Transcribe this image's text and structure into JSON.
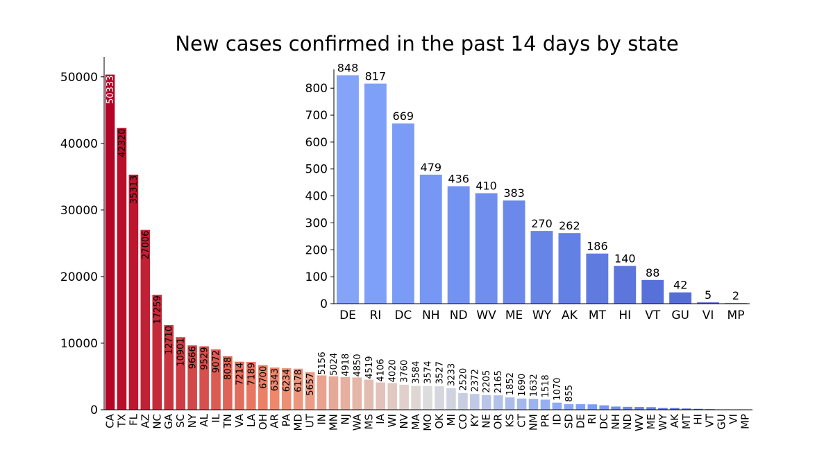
{
  "chart_data": [
    {
      "type": "bar",
      "title": "New cases confirmed in the past 14 days by state",
      "xlabel": "",
      "ylabel": "",
      "ylim": [
        0,
        53000
      ],
      "yticks": [
        0,
        10000,
        20000,
        30000,
        40000,
        50000
      ],
      "legend": "none",
      "categories": [
        "CA",
        "TX",
        "FL",
        "AZ",
        "NC",
        "GA",
        "SC",
        "NY",
        "AL",
        "IL",
        "TN",
        "VA",
        "LA",
        "OH",
        "AR",
        "PA",
        "MD",
        "UT",
        "IN",
        "MN",
        "NJ",
        "WA",
        "MS",
        "IA",
        "WI",
        "NV",
        "MA",
        "MO",
        "OK",
        "MI",
        "CO",
        "KY",
        "NE",
        "OR",
        "KS",
        "CT",
        "NM",
        "PR",
        "ID",
        "SD",
        "DE",
        "RI",
        "DC",
        "NH",
        "ND",
        "WV",
        "ME",
        "WY",
        "AK",
        "MT",
        "HI",
        "VT",
        "GU",
        "VI",
        "MP"
      ],
      "values": [
        50333,
        42320,
        35313,
        27006,
        17259,
        12710,
        10901,
        9666,
        9529,
        9072,
        8038,
        7214,
        7189,
        6700,
        6343,
        6234,
        6178,
        5657,
        5156,
        5024,
        4918,
        4850,
        4519,
        4106,
        4020,
        3760,
        3584,
        3574,
        3527,
        3233,
        2520,
        2372,
        2205,
        2165,
        1852,
        1690,
        1632,
        1518,
        1070,
        855,
        848,
        817,
        669,
        479,
        436,
        410,
        383,
        270,
        262,
        186,
        140,
        88,
        42,
        5,
        2
      ],
      "labels": [
        "50333",
        "42320",
        "35313",
        "27006",
        "17259",
        "12710",
        "10901",
        "9666",
        "9529",
        "9072",
        "8038",
        "7214",
        "7189",
        "6700",
        "6343",
        "6234",
        "6178",
        "5657",
        "5156",
        "5024",
        "4918",
        "4850",
        "4519",
        "4106",
        "4020",
        "3760",
        "3584",
        "3574",
        "3527",
        "3233",
        "2520",
        "2372",
        "2205",
        "2165",
        "1852",
        "1690",
        "1632",
        "1518",
        "1070",
        "855"
      ]
    },
    {
      "type": "bar",
      "title": "",
      "xlabel": "",
      "ylabel": "",
      "ylim": [
        0,
        870
      ],
      "yticks": [
        0,
        100,
        200,
        300,
        400,
        500,
        600,
        700,
        800
      ],
      "legend": "none",
      "categories": [
        "DE",
        "RI",
        "DC",
        "NH",
        "ND",
        "WV",
        "ME",
        "WY",
        "AK",
        "MT",
        "HI",
        "VT",
        "GU",
        "VI",
        "MP"
      ],
      "values": [
        848,
        817,
        669,
        479,
        436,
        410,
        383,
        270,
        262,
        186,
        140,
        88,
        42,
        5,
        2
      ],
      "labels": [
        "848",
        "817",
        "669",
        "479",
        "436",
        "410",
        "383",
        "270",
        "262",
        "186",
        "140",
        "88",
        "42",
        "5",
        "2"
      ]
    }
  ]
}
